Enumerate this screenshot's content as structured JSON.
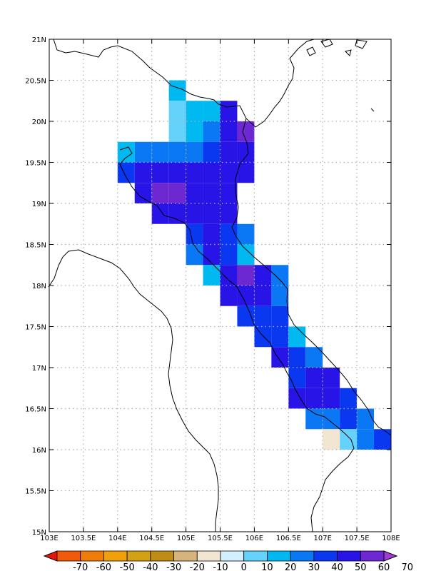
{
  "map": {
    "lon_range": [
      103,
      108
    ],
    "lat_range": [
      15,
      21
    ],
    "grid_step_deg": 0.25,
    "gridlines": "dotted",
    "xticks": [
      "103E",
      "103.5E",
      "104E",
      "104.5E",
      "105E",
      "105.5E",
      "106E",
      "106.5E",
      "107E",
      "107.5E",
      "108E"
    ],
    "yticks": [
      "15N",
      "15.5N",
      "16N",
      "16.5N",
      "17N",
      "17.5N",
      "18N",
      "18.5N",
      "19N",
      "19.5N",
      "20N",
      "20.5N",
      "21N"
    ]
  },
  "colorbar": {
    "labels": [
      "-70",
      "-60",
      "-50",
      "-40",
      "-30",
      "-20",
      "-10",
      "0",
      "10",
      "20",
      "30",
      "40",
      "50",
      "60",
      "70"
    ],
    "colors": [
      "#e8140a",
      "#f05a0a",
      "#f07d0a",
      "#f0a00a",
      "#d4a014",
      "#c08c14",
      "#d6b47c",
      "#f2e6d2",
      "#d2f0ff",
      "#64d2fa",
      "#00b9f0",
      "#0a78f5",
      "#0a37f0",
      "#2814e6",
      "#6e28d2",
      "#a03cd2"
    ]
  },
  "chart_data": {
    "type": "heatmap",
    "lon_min": 103,
    "lat_min": 15,
    "cell_deg": 0.25,
    "cells": [
      {
        "lon": 104.875,
        "lat": 20.375,
        "v": 25
      },
      {
        "lon": 104.875,
        "lat": 20.125,
        "v": 15
      },
      {
        "lon": 105.125,
        "lat": 20.125,
        "v": 25
      },
      {
        "lon": 105.375,
        "lat": 20.125,
        "v": 25
      },
      {
        "lon": 105.625,
        "lat": 20.125,
        "v": 55
      },
      {
        "lon": 104.875,
        "lat": 19.875,
        "v": 15
      },
      {
        "lon": 105.125,
        "lat": 19.875,
        "v": 25
      },
      {
        "lon": 105.375,
        "lat": 19.875,
        "v": 35
      },
      {
        "lon": 105.625,
        "lat": 19.875,
        "v": 55
      },
      {
        "lon": 105.875,
        "lat": 19.875,
        "v": 65
      },
      {
        "lon": 104.125,
        "lat": 19.625,
        "v": 25
      },
      {
        "lon": 104.375,
        "lat": 19.625,
        "v": 35
      },
      {
        "lon": 104.625,
        "lat": 19.625,
        "v": 35
      },
      {
        "lon": 104.875,
        "lat": 19.625,
        "v": 35
      },
      {
        "lon": 105.125,
        "lat": 19.625,
        "v": 35
      },
      {
        "lon": 105.375,
        "lat": 19.625,
        "v": 45
      },
      {
        "lon": 105.625,
        "lat": 19.625,
        "v": 55
      },
      {
        "lon": 105.875,
        "lat": 19.625,
        "v": 55
      },
      {
        "lon": 104.125,
        "lat": 19.375,
        "v": 45
      },
      {
        "lon": 104.375,
        "lat": 19.375,
        "v": 55
      },
      {
        "lon": 104.625,
        "lat": 19.375,
        "v": 55
      },
      {
        "lon": 104.875,
        "lat": 19.375,
        "v": 55
      },
      {
        "lon": 105.125,
        "lat": 19.375,
        "v": 55
      },
      {
        "lon": 105.375,
        "lat": 19.375,
        "v": 55
      },
      {
        "lon": 105.625,
        "lat": 19.375,
        "v": 55
      },
      {
        "lon": 105.875,
        "lat": 19.375,
        "v": 55
      },
      {
        "lon": 104.375,
        "lat": 19.125,
        "v": 55
      },
      {
        "lon": 104.625,
        "lat": 19.125,
        "v": 65
      },
      {
        "lon": 104.875,
        "lat": 19.125,
        "v": 62
      },
      {
        "lon": 105.125,
        "lat": 19.125,
        "v": 55
      },
      {
        "lon": 105.375,
        "lat": 19.125,
        "v": 58
      },
      {
        "lon": 105.625,
        "lat": 19.125,
        "v": 55
      },
      {
        "lon": 104.625,
        "lat": 18.875,
        "v": 55
      },
      {
        "lon": 104.875,
        "lat": 18.875,
        "v": 55
      },
      {
        "lon": 105.125,
        "lat": 18.875,
        "v": 55
      },
      {
        "lon": 105.375,
        "lat": 18.875,
        "v": 55
      },
      {
        "lon": 105.625,
        "lat": 18.875,
        "v": 55
      },
      {
        "lon": 105.125,
        "lat": 18.625,
        "v": 45
      },
      {
        "lon": 105.375,
        "lat": 18.625,
        "v": 55
      },
      {
        "lon": 105.625,
        "lat": 18.625,
        "v": 45
      },
      {
        "lon": 105.875,
        "lat": 18.625,
        "v": 35
      },
      {
        "lon": 105.125,
        "lat": 18.375,
        "v": 35
      },
      {
        "lon": 105.375,
        "lat": 18.375,
        "v": 55
      },
      {
        "lon": 105.625,
        "lat": 18.375,
        "v": 45
      },
      {
        "lon": 105.875,
        "lat": 18.375,
        "v": 25
      },
      {
        "lon": 105.375,
        "lat": 18.125,
        "v": 25
      },
      {
        "lon": 105.625,
        "lat": 18.125,
        "v": 55
      },
      {
        "lon": 105.875,
        "lat": 18.125,
        "v": 62
      },
      {
        "lon": 106.125,
        "lat": 18.125,
        "v": 55
      },
      {
        "lon": 106.375,
        "lat": 18.125,
        "v": 35
      },
      {
        "lon": 105.625,
        "lat": 17.875,
        "v": 55
      },
      {
        "lon": 105.875,
        "lat": 17.875,
        "v": 58
      },
      {
        "lon": 106.125,
        "lat": 17.875,
        "v": 55
      },
      {
        "lon": 106.375,
        "lat": 17.875,
        "v": 35
      },
      {
        "lon": 105.875,
        "lat": 17.625,
        "v": 45
      },
      {
        "lon": 106.125,
        "lat": 17.625,
        "v": 45
      },
      {
        "lon": 106.375,
        "lat": 17.625,
        "v": 45
      },
      {
        "lon": 106.125,
        "lat": 17.375,
        "v": 45
      },
      {
        "lon": 106.375,
        "lat": 17.375,
        "v": 45
      },
      {
        "lon": 106.625,
        "lat": 17.375,
        "v": 25
      },
      {
        "lon": 106.375,
        "lat": 17.125,
        "v": 55
      },
      {
        "lon": 106.625,
        "lat": 17.125,
        "v": 45
      },
      {
        "lon": 106.875,
        "lat": 17.125,
        "v": 35
      },
      {
        "lon": 106.625,
        "lat": 16.875,
        "v": 45
      },
      {
        "lon": 106.875,
        "lat": 16.875,
        "v": 55
      },
      {
        "lon": 107.125,
        "lat": 16.875,
        "v": 55
      },
      {
        "lon": 106.625,
        "lat": 16.625,
        "v": 58
      },
      {
        "lon": 106.875,
        "lat": 16.625,
        "v": 55
      },
      {
        "lon": 107.125,
        "lat": 16.625,
        "v": 55
      },
      {
        "lon": 107.375,
        "lat": 16.625,
        "v": 45
      },
      {
        "lon": 106.875,
        "lat": 16.375,
        "v": 35
      },
      {
        "lon": 107.125,
        "lat": 16.375,
        "v": 35
      },
      {
        "lon": 107.375,
        "lat": 16.375,
        "v": 45
      },
      {
        "lon": 107.625,
        "lat": 16.375,
        "v": 35
      },
      {
        "lon": 107.125,
        "lat": 16.125,
        "v": -5
      },
      {
        "lon": 107.375,
        "lat": 16.125,
        "v": 15
      },
      {
        "lon": 107.625,
        "lat": 16.125,
        "v": 35
      },
      {
        "lon": 107.875,
        "lat": 16.125,
        "v": 45
      }
    ]
  }
}
